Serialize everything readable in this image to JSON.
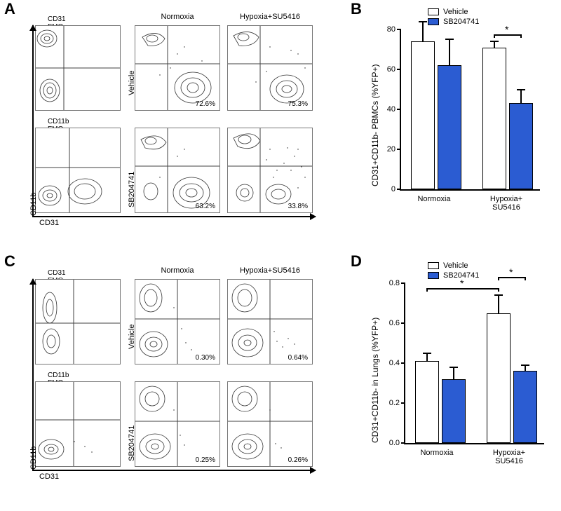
{
  "colors": {
    "vehicle_fill": "#ffffff",
    "drug_fill": "#2b5cd2",
    "bar_stroke": "#000000",
    "quad_line": "#404040",
    "contour_stroke": "#333333",
    "scatter_dot": "#222222",
    "axis": "#000000",
    "plot_border": "#777777",
    "background": "#ffffff"
  },
  "typography": {
    "panel_label_pt": 22,
    "title_pt": 11,
    "axis_pt": 11,
    "pct_pt": 10,
    "ylabel_pt": 12,
    "font_family": "Arial"
  },
  "panels": {
    "A": {
      "axis_x": "CD31",
      "axis_y": "CD11b",
      "cols": [
        "Normoxia",
        "Hypoxia+SU5416"
      ],
      "rows": [
        "Vehicle",
        "SB204741"
      ],
      "fmo_top": "CD31 FMO",
      "fmo_bottom": "CD11b FMO",
      "pct": {
        "r1c1": "72.6%",
        "r1c2": "75.3%",
        "r2c1": "63.2%",
        "r2c2": "33.8%"
      }
    },
    "B": {
      "ylabel": "CD31+CD11b- PBMCs (%YFP+)",
      "ylim": [
        0,
        80
      ],
      "ytick_step": 20,
      "groups": [
        "Normoxia",
        "Hypoxia+\nSU5416"
      ],
      "legend": [
        "Vehicle",
        "SB204741"
      ],
      "values": {
        "Normoxia": {
          "Vehicle": {
            "mean": 74,
            "err": 10
          },
          "SB204741": {
            "mean": 62,
            "err": 13
          }
        },
        "Hypoxia": {
          "Vehicle": {
            "mean": 71,
            "err": 3
          },
          "SB204741": {
            "mean": 43,
            "err": 7
          }
        }
      },
      "sig": [
        {
          "between": [
            "Hypoxia.Vehicle",
            "Hypoxia.SB204741"
          ],
          "label": "*"
        }
      ]
    },
    "C": {
      "axis_x": "CD31",
      "axis_y": "CD11b",
      "cols": [
        "Normoxia",
        "Hypoxia+SU5416"
      ],
      "rows": [
        "Vehicle",
        "SB204741"
      ],
      "fmo_top": "CD31 FMO",
      "fmo_bottom": "CD11b FMO",
      "pct": {
        "r1c1": "0.30%",
        "r1c2": "0.64%",
        "r2c1": "0.25%",
        "r2c2": "0.26%"
      }
    },
    "D": {
      "ylabel": "CD31+CD11b- in Lungs (%YFP+)",
      "ylim": [
        0,
        0.8
      ],
      "ytick_step": 0.2,
      "groups": [
        "Normoxia",
        "Hypoxia+\nSU5416"
      ],
      "legend": [
        "Vehicle",
        "SB204741"
      ],
      "values": {
        "Normoxia": {
          "Vehicle": {
            "mean": 0.41,
            "err": 0.04
          },
          "SB204741": {
            "mean": 0.32,
            "err": 0.06
          }
        },
        "Hypoxia": {
          "Vehicle": {
            "mean": 0.65,
            "err": 0.09
          },
          "SB204741": {
            "mean": 0.36,
            "err": 0.03
          }
        }
      },
      "sig": [
        {
          "between": [
            "Normoxia.Vehicle",
            "Hypoxia.Vehicle"
          ],
          "label": "*"
        },
        {
          "between": [
            "Hypoxia.Vehicle",
            "Hypoxia.SB204741"
          ],
          "label": "*"
        }
      ]
    }
  }
}
